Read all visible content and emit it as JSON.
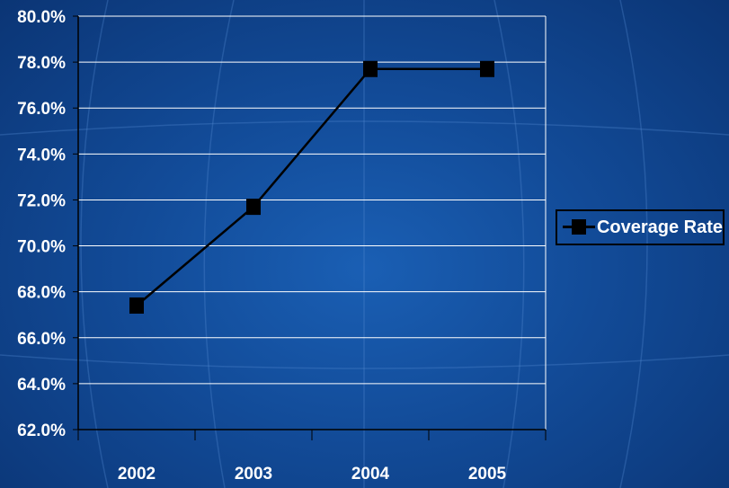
{
  "colors": {
    "background": "#124b98",
    "gridline": "#ffffff",
    "axis": "#000000",
    "series": "#000000",
    "text": "#ffffff"
  },
  "chart_data": {
    "type": "line",
    "title": "",
    "xlabel": "",
    "ylabel": "",
    "categories": [
      "2002",
      "2003",
      "2004",
      "2005"
    ],
    "series": [
      {
        "name": "Coverage Rate",
        "values": [
          0.674,
          0.717,
          0.777,
          0.777
        ],
        "marker": "square",
        "color": "#000000"
      }
    ],
    "ylim": [
      0.62,
      0.8
    ],
    "y_ticks": [
      0.62,
      0.64,
      0.66,
      0.68,
      0.7,
      0.72,
      0.74,
      0.76,
      0.78,
      0.8
    ],
    "y_tick_labels": [
      "62.0%",
      "64.0%",
      "66.0%",
      "68.0%",
      "70.0%",
      "72.0%",
      "74.0%",
      "76.0%",
      "78.0%",
      "80.0%"
    ],
    "y_format": "percent",
    "grid": "horizontal",
    "legend_position": "right"
  },
  "legend": {
    "label": "Coverage Rate"
  }
}
